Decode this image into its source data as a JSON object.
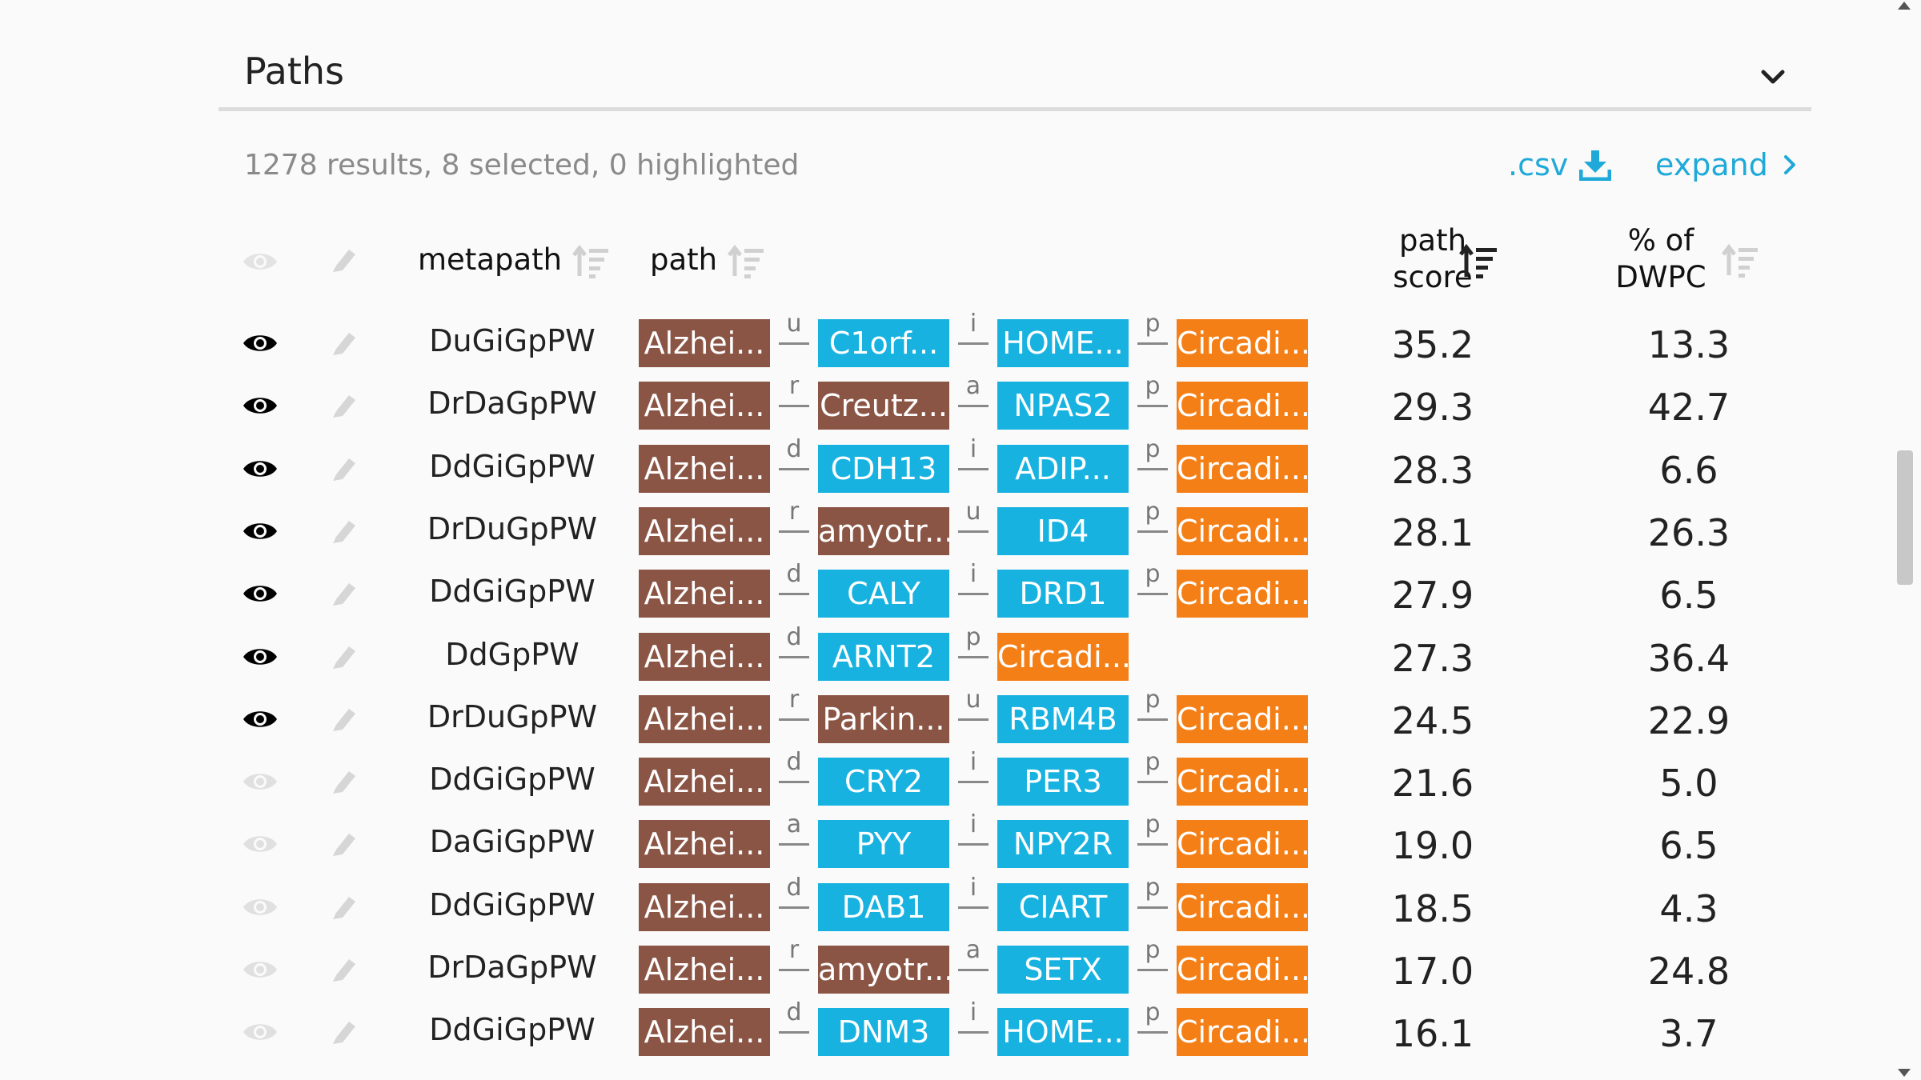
{
  "section": {
    "title": "Paths"
  },
  "summary": "1278 results, 8 selected, 0 highlighted",
  "links": {
    "csv": ".csv",
    "expand": "expand"
  },
  "columns": {
    "metapath": "metapath",
    "path": "path",
    "score_line1": "path",
    "score_line2": "score",
    "pct_line1": "% of",
    "pct_line2": "DWPC"
  },
  "colors": {
    "disease": "#8b5545",
    "gene": "#17b2e0",
    "pathway": "#f57f17",
    "accent": "#1ea9d8"
  },
  "rows": [
    {
      "visible": true,
      "metapath": "DuGiGpPW",
      "nodes": [
        [
          "disease",
          "Alzhei..."
        ],
        [
          "gene",
          "C1orf..."
        ],
        [
          "gene",
          "HOME..."
        ],
        [
          "pathway",
          "Circadi..."
        ]
      ],
      "edges": [
        "u",
        "i",
        "p"
      ],
      "score": "35.2",
      "pct": "13.3"
    },
    {
      "visible": true,
      "metapath": "DrDaGpPW",
      "nodes": [
        [
          "disease",
          "Alzhei..."
        ],
        [
          "disease",
          "Creutz..."
        ],
        [
          "gene",
          "NPAS2"
        ],
        [
          "pathway",
          "Circadi..."
        ]
      ],
      "edges": [
        "r",
        "a",
        "p"
      ],
      "score": "29.3",
      "pct": "42.7"
    },
    {
      "visible": true,
      "metapath": "DdGiGpPW",
      "nodes": [
        [
          "disease",
          "Alzhei..."
        ],
        [
          "gene",
          "CDH13"
        ],
        [
          "gene",
          "ADIP..."
        ],
        [
          "pathway",
          "Circadi..."
        ]
      ],
      "edges": [
        "d",
        "i",
        "p"
      ],
      "score": "28.3",
      "pct": "6.6"
    },
    {
      "visible": true,
      "metapath": "DrDuGpPW",
      "nodes": [
        [
          "disease",
          "Alzhei..."
        ],
        [
          "disease",
          "amyotr..."
        ],
        [
          "gene",
          "ID4"
        ],
        [
          "pathway",
          "Circadi..."
        ]
      ],
      "edges": [
        "r",
        "u",
        "p"
      ],
      "score": "28.1",
      "pct": "26.3"
    },
    {
      "visible": true,
      "metapath": "DdGiGpPW",
      "nodes": [
        [
          "disease",
          "Alzhei..."
        ],
        [
          "gene",
          "CALY"
        ],
        [
          "gene",
          "DRD1"
        ],
        [
          "pathway",
          "Circadi..."
        ]
      ],
      "edges": [
        "d",
        "i",
        "p"
      ],
      "score": "27.9",
      "pct": "6.5"
    },
    {
      "visible": true,
      "metapath": "DdGpPW",
      "nodes": [
        [
          "disease",
          "Alzhei..."
        ],
        [
          "gene",
          "ARNT2"
        ],
        [
          "pathway",
          "Circadi..."
        ]
      ],
      "edges": [
        "d",
        "p"
      ],
      "score": "27.3",
      "pct": "36.4"
    },
    {
      "visible": true,
      "metapath": "DrDuGpPW",
      "nodes": [
        [
          "disease",
          "Alzhei..."
        ],
        [
          "disease",
          "Parkin..."
        ],
        [
          "gene",
          "RBM4B"
        ],
        [
          "pathway",
          "Circadi..."
        ]
      ],
      "edges": [
        "r",
        "u",
        "p"
      ],
      "score": "24.5",
      "pct": "22.9"
    },
    {
      "visible": false,
      "metapath": "DdGiGpPW",
      "nodes": [
        [
          "disease",
          "Alzhei..."
        ],
        [
          "gene",
          "CRY2"
        ],
        [
          "gene",
          "PER3"
        ],
        [
          "pathway",
          "Circadi..."
        ]
      ],
      "edges": [
        "d",
        "i",
        "p"
      ],
      "score": "21.6",
      "pct": "5.0"
    },
    {
      "visible": false,
      "metapath": "DaGiGpPW",
      "nodes": [
        [
          "disease",
          "Alzhei..."
        ],
        [
          "gene",
          "PYY"
        ],
        [
          "gene",
          "NPY2R"
        ],
        [
          "pathway",
          "Circadi..."
        ]
      ],
      "edges": [
        "a",
        "i",
        "p"
      ],
      "score": "19.0",
      "pct": "6.5"
    },
    {
      "visible": false,
      "metapath": "DdGiGpPW",
      "nodes": [
        [
          "disease",
          "Alzhei..."
        ],
        [
          "gene",
          "DAB1"
        ],
        [
          "gene",
          "CIART"
        ],
        [
          "pathway",
          "Circadi..."
        ]
      ],
      "edges": [
        "d",
        "i",
        "p"
      ],
      "score": "18.5",
      "pct": "4.3"
    },
    {
      "visible": false,
      "metapath": "DrDaGpPW",
      "nodes": [
        [
          "disease",
          "Alzhei..."
        ],
        [
          "disease",
          "amyotr..."
        ],
        [
          "gene",
          "SETX"
        ],
        [
          "pathway",
          "Circadi..."
        ]
      ],
      "edges": [
        "r",
        "a",
        "p"
      ],
      "score": "17.0",
      "pct": "24.8"
    },
    {
      "visible": false,
      "metapath": "DdGiGpPW",
      "nodes": [
        [
          "disease",
          "Alzhei..."
        ],
        [
          "gene",
          "DNM3"
        ],
        [
          "gene",
          "HOME..."
        ],
        [
          "pathway",
          "Circadi..."
        ]
      ],
      "edges": [
        "d",
        "i",
        "p"
      ],
      "score": "16.1",
      "pct": "3.7"
    }
  ]
}
